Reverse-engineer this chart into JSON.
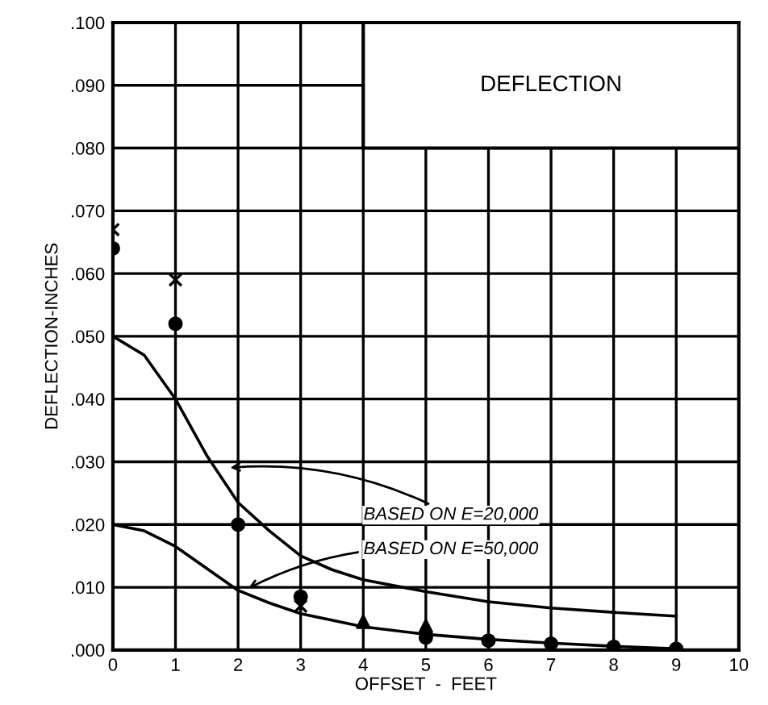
{
  "chart_data": {
    "type": "line",
    "title": "DEFLECTION",
    "xlabel": "OFFSET  -  FEET",
    "ylabel": "DEFLECTION-INCHES",
    "xlim": [
      0,
      10
    ],
    "ylim": [
      0,
      0.1
    ],
    "xticks": [
      0,
      1,
      2,
      3,
      4,
      5,
      6,
      7,
      8,
      9,
      10
    ],
    "yticks": [
      {
        "value": 0,
        "label": ".000"
      },
      {
        "value": 0.01,
        "label": ".010"
      },
      {
        "value": 0.02,
        "label": ".020"
      },
      {
        "value": 0.03,
        "label": ".030"
      },
      {
        "value": 0.04,
        "label": ".040"
      },
      {
        "value": 0.05,
        "label": ".050"
      },
      {
        "value": 0.06,
        "label": ".060"
      },
      {
        "value": 0.07,
        "label": ".070"
      },
      {
        "value": 0.08,
        "label": ".080"
      },
      {
        "value": 0.09,
        "label": ".090"
      },
      {
        "value": 0.1,
        "label": ".100"
      }
    ],
    "grid": true,
    "legend": false,
    "series": [
      {
        "color": "#000000",
        "marker": "none",
        "line_style": "solid",
        "x": [
          0,
          0.5,
          1,
          1.5,
          2,
          2.5,
          3,
          3.5,
          4,
          5,
          6,
          7,
          8,
          9
        ],
        "values": [
          0.05,
          0.047,
          0.04,
          0.031,
          0.0235,
          0.019,
          0.015,
          0.0128,
          0.0112,
          0.0093,
          0.0077,
          0.0067,
          0.006,
          0.0054
        ]
      },
      {
        "color": "#000000",
        "marker": "none",
        "line_style": "solid",
        "x": [
          0,
          0.5,
          1,
          1.5,
          2,
          2.5,
          3,
          4,
          5,
          6,
          7,
          8,
          9
        ],
        "values": [
          0.02,
          0.019,
          0.0165,
          0.013,
          0.0095,
          0.0075,
          0.0058,
          0.0037,
          0.0025,
          0.0017,
          0.0011,
          0.0006,
          0.0002
        ]
      },
      {
        "type": "scatter",
        "color": "#000000",
        "marker": "circle",
        "x": [
          0,
          1,
          2,
          3,
          5,
          6,
          7,
          8,
          9
        ],
        "values": [
          0.064,
          0.052,
          0.02,
          0.0085,
          0.002,
          0.0015,
          0.001,
          0.0005,
          0.0002
        ]
      },
      {
        "type": "scatter",
        "color": "#000000",
        "marker": "cross",
        "x": [
          0,
          1,
          3
        ],
        "values": [
          0.067,
          0.059,
          0.007
        ]
      },
      {
        "type": "scatter",
        "color": "#000000",
        "marker": "triangle",
        "x": [
          4,
          5
        ],
        "values": [
          0.0045,
          0.0038
        ]
      }
    ],
    "annotations": [
      {
        "text": "BASED ON E=20,000",
        "x": 1.8,
        "y": 0.029
      },
      {
        "text": "BASED ON E=50,000",
        "x": 2.1,
        "y": 0.0095
      }
    ]
  }
}
